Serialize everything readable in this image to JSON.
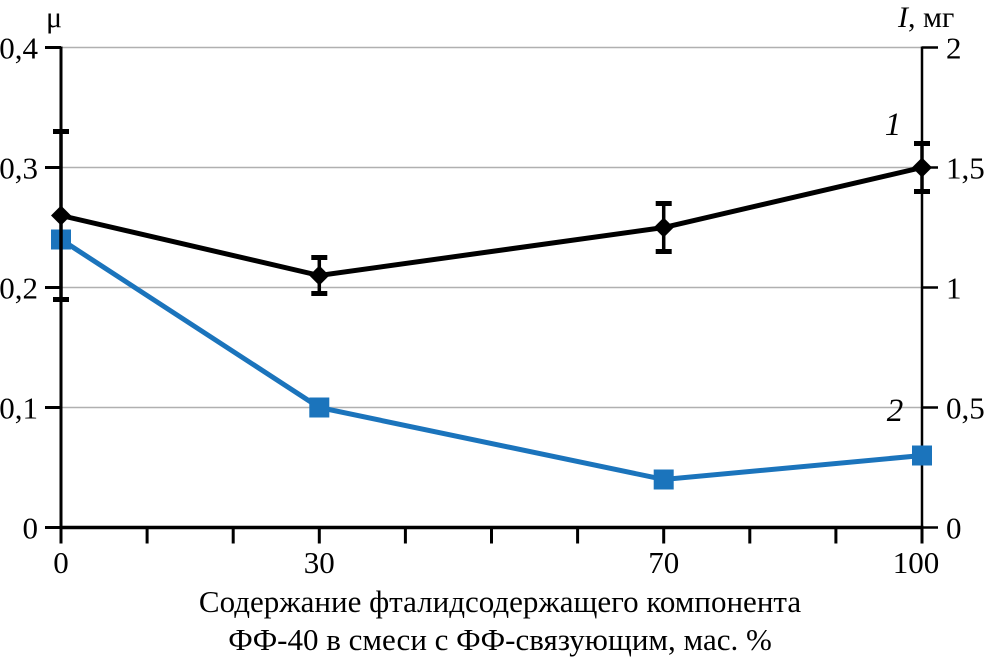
{
  "chart_data": {
    "type": "line",
    "title": "",
    "x": [
      0,
      30,
      70,
      100
    ],
    "x_axis": {
      "caption_lines": [
        "Содержание фталидсодержащего компонента",
        "ФФ-40 в смеси с ФФ-связующим, мас. %"
      ],
      "range": [
        0,
        100
      ],
      "minor_tick_step": 10,
      "tick_labels": [
        {
          "value": 0,
          "label": "0"
        },
        {
          "value": 30,
          "label": "30"
        },
        {
          "value": 70,
          "label": "70"
        },
        {
          "value": 100,
          "label": "100"
        }
      ]
    },
    "left_axis": {
      "title": "μ",
      "range": [
        0,
        0.4
      ],
      "ticks": [
        {
          "value": 0.4,
          "label": "0,4"
        },
        {
          "value": 0.3,
          "label": "0,3"
        },
        {
          "value": 0.2,
          "label": "0,2"
        },
        {
          "value": 0.1,
          "label": "0,1"
        },
        {
          "value": 0,
          "label": "0"
        }
      ],
      "gridline_values": [
        0.3,
        0.2,
        0.1
      ]
    },
    "right_axis": {
      "title_italic": "I",
      "title_rest": ", мг",
      "range": [
        0,
        2
      ],
      "ticks": [
        {
          "value": 2,
          "label": "2"
        },
        {
          "value": 1.5,
          "label": "1,5"
        },
        {
          "value": 1,
          "label": "1"
        },
        {
          "value": 0.5,
          "label": "0,5"
        },
        {
          "value": 0,
          "label": "0"
        }
      ]
    },
    "series": [
      {
        "name": "1",
        "label": "1",
        "axis": "left",
        "color": "#000000",
        "marker": "diamond",
        "values": [
          0.26,
          0.21,
          0.25,
          0.3
        ],
        "error": [
          0.07,
          0.015,
          0.02,
          0.02
        ]
      },
      {
        "name": "2",
        "label": "2",
        "axis": "right",
        "color": "#1b74bc",
        "marker": "square",
        "values": [
          1.2,
          0.5,
          0.2,
          0.3
        ],
        "error": null
      }
    ],
    "grid_on": true,
    "grid_color": "#b0b0b0",
    "legend_position": "curve-labels-near-right-edge"
  }
}
